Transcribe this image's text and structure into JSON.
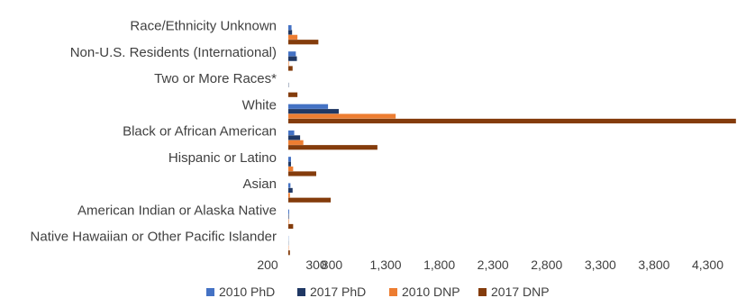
{
  "chart_data": {
    "type": "bar",
    "orientation": "horizontal",
    "categories": [
      "Race/Ethnicity Unknown",
      "Non-U.S. Residents (International)",
      "Two or More Races*",
      "White",
      "Black or African American",
      "Hispanic or Latino",
      "Asian",
      "American Indian or Alaska Native",
      "Native Hawaiian or Other Pacific Islander"
    ],
    "series": [
      {
        "name": "2010 PhD",
        "color": "#4472C4",
        "values": [
          30,
          70,
          0,
          370,
          55,
          25,
          20,
          8,
          2
        ]
      },
      {
        "name": "2017 PhD",
        "color": "#203864",
        "values": [
          35,
          80,
          3,
          470,
          110,
          25,
          40,
          5,
          2
        ]
      },
      {
        "name": "2010 DNP",
        "color": "#ED7D31",
        "values": [
          85,
          5,
          0,
          1000,
          140,
          45,
          15,
          5,
          3
        ]
      },
      {
        "name": "2017 DNP",
        "color": "#843C0C",
        "values": [
          280,
          40,
          85,
          4170,
          830,
          260,
          395,
          45,
          15
        ]
      }
    ],
    "xlim": [
      200,
      4300
    ],
    "x_ticks": [
      "200",
      "300",
      "800",
      "1,300",
      "1,800",
      "2,300",
      "2,800",
      "3,300",
      "3,800",
      "4,300"
    ],
    "x_tick_values": [
      200,
      300,
      800,
      1300,
      1800,
      2300,
      2800,
      3300,
      3800,
      4300
    ],
    "legend_position": "bottom",
    "grid": false,
    "title": "",
    "xlabel": "",
    "ylabel": ""
  }
}
